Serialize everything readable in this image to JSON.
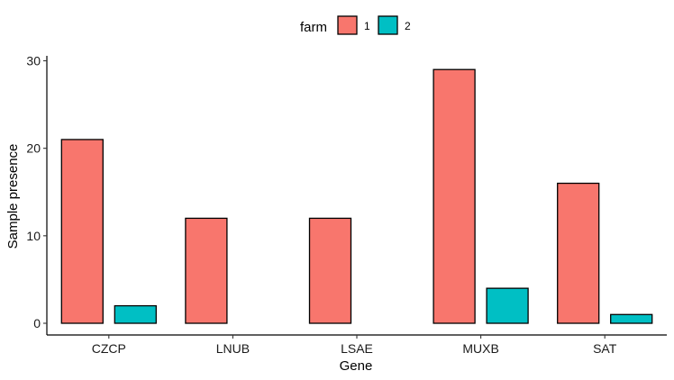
{
  "chart_data": {
    "type": "bar",
    "categories": [
      "CZCP",
      "LNUB",
      "LSAE",
      "MUXB",
      "SAT"
    ],
    "series": [
      {
        "name": "1",
        "color": "#F8766D",
        "values": [
          21,
          12,
          12,
          29,
          16
        ]
      },
      {
        "name": "2",
        "color": "#00BFC4",
        "values": [
          2,
          0,
          0,
          4,
          1
        ]
      }
    ],
    "xlabel": "Gene",
    "ylabel": "Sample presence",
    "ylim": [
      0,
      30
    ],
    "yticks": [
      0,
      10,
      20,
      30
    ],
    "legend": {
      "title": "farm",
      "position": "top"
    },
    "grid": false
  }
}
